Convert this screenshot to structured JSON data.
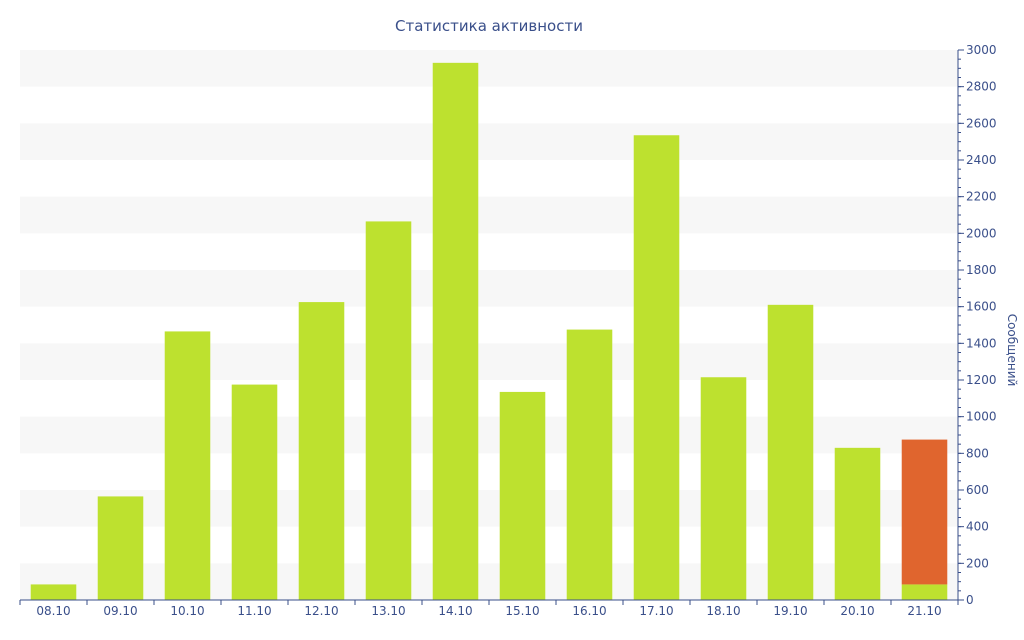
{
  "chart_data": {
    "type": "bar",
    "title": "Статистика активности",
    "xlabel": "",
    "ylabel": "Сообщений",
    "ylim": [
      0,
      3000
    ],
    "yticks": [
      0,
      200,
      400,
      600,
      800,
      1000,
      1200,
      1400,
      1600,
      1800,
      2000,
      2200,
      2400,
      2600,
      2800,
      3000
    ],
    "y_axis_side": "right",
    "grid": "alternating horizontal bands",
    "legend": "none",
    "categories": [
      "08.10",
      "09.10",
      "10.10",
      "11.10",
      "12.10",
      "13.10",
      "14.10",
      "15.10",
      "16.10",
      "17.10",
      "18.10",
      "19.10",
      "20.10",
      "21.10"
    ],
    "series": [
      {
        "color": "#bde12f",
        "values": [
          85,
          565,
          1465,
          1175,
          1625,
          2065,
          2930,
          1135,
          1475,
          2535,
          1215,
          1610,
          830,
          85
        ]
      },
      {
        "color": "#e0652e",
        "values": [
          0,
          0,
          0,
          0,
          0,
          0,
          0,
          0,
          0,
          0,
          0,
          0,
          0,
          790
        ]
      }
    ],
    "colors": {
      "axis": "#3a4f8a",
      "band": "#f7f7f7"
    }
  }
}
